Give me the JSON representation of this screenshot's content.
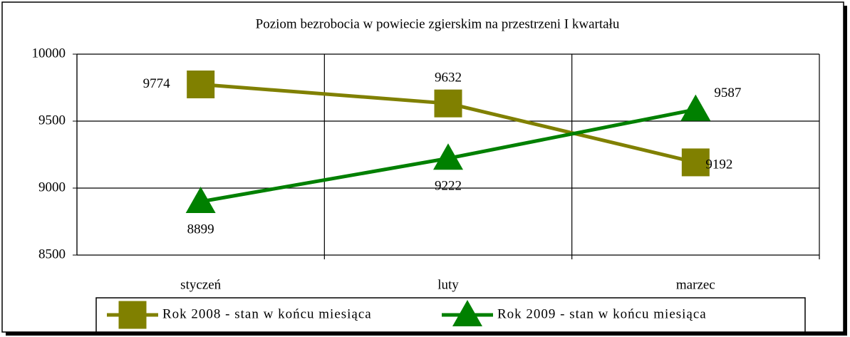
{
  "chart_data": {
    "type": "line",
    "title": "Poziom bezrobocia w powiecie zgierskim na przestrzeni I kwartału",
    "categories": [
      "styczeń",
      "luty",
      "marzec"
    ],
    "series": [
      {
        "name": "Rok 2008 - stan w końcu miesiąca",
        "color": "#808000",
        "marker": "square",
        "values": [
          9774,
          9632,
          9192
        ]
      },
      {
        "name": "Rok 2009 - stan w końcu miesiąca",
        "color": "#008000",
        "marker": "triangle",
        "values": [
          8899,
          9222,
          9587
        ]
      }
    ],
    "ylim": [
      8500,
      10000
    ],
    "yticks": [
      8500,
      9000,
      9500,
      10000
    ],
    "grid": true,
    "legend": "bottom"
  }
}
